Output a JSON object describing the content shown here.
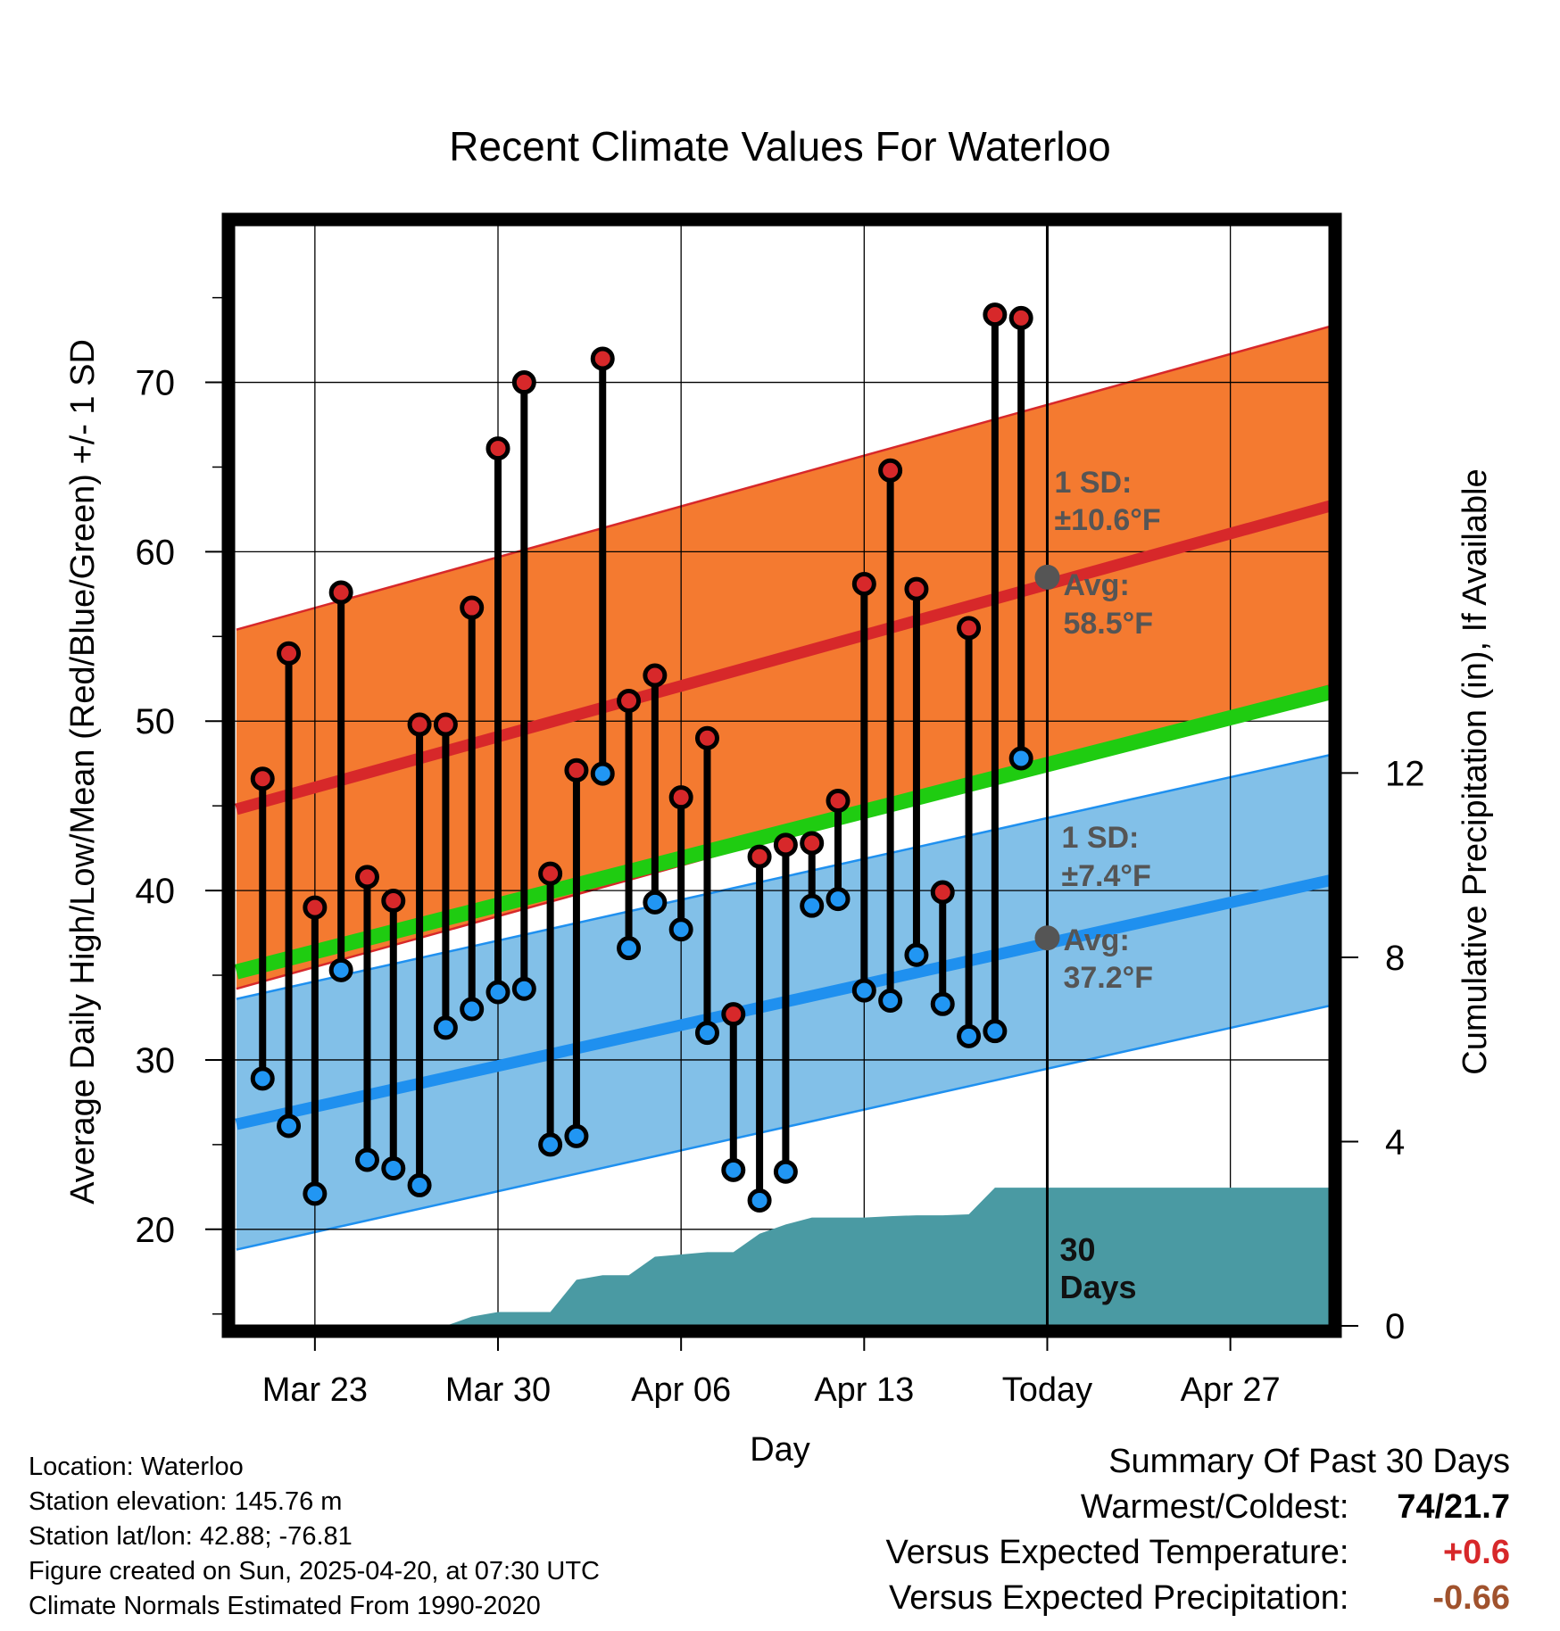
{
  "chart_data": {
    "type": "line",
    "title": "Recent Climate Values For Waterloo",
    "xlabel": "Day",
    "ylabel": "Average Daily High/Low/Mean (Red/Blue/Green) +/- 1 SD",
    "y2label": "Cumulative Precipitation (in), If Available",
    "x_ticks": [
      {
        "label": "Mar 23",
        "day": 3
      },
      {
        "label": "Mar 30",
        "day": 10
      },
      {
        "label": "Apr 06",
        "day": 17
      },
      {
        "label": "Apr 13",
        "day": 24
      },
      {
        "label": "Today",
        "day": 31
      },
      {
        "label": "Apr 27",
        "day": 38
      }
    ],
    "y_ticks": [
      20,
      30,
      40,
      50,
      60,
      70
    ],
    "y2_ticks": [
      0,
      4,
      8,
      12
    ],
    "xlim": [
      -0.1,
      41.8
    ],
    "ylim": [
      14.3,
      79.3
    ],
    "y2lim": [
      0,
      23.9
    ],
    "today_day": 31,
    "grid": true,
    "normals": {
      "days": [
        0,
        41.8
      ],
      "high_mean": [
        44.8,
        62.7
      ],
      "high_sd": 10.6,
      "low_mean": [
        26.2,
        40.6
      ],
      "low_sd": 7.4,
      "avg_mean": [
        35.2,
        51.7
      ]
    },
    "daily": {
      "days": [
        1,
        2,
        3,
        4,
        5,
        6,
        7,
        8,
        9,
        10,
        11,
        12,
        13,
        14,
        15,
        16,
        17,
        18,
        19,
        20,
        21,
        22,
        23,
        24,
        25,
        26,
        27,
        28,
        29,
        30
      ],
      "high": [
        46.6,
        54,
        39,
        57.6,
        40.8,
        39.4,
        49.8,
        49.8,
        56.7,
        66.1,
        70,
        41,
        47.1,
        71.4,
        51.2,
        52.7,
        45.5,
        49,
        32.7,
        42,
        42.7,
        42.8,
        45.3,
        58.1,
        64.8,
        57.8,
        39.9,
        55.5,
        74,
        73.8
      ],
      "low": [
        28.9,
        26.1,
        22.1,
        35.3,
        24.1,
        23.6,
        22.6,
        31.9,
        33,
        34,
        34.2,
        25,
        25.5,
        46.9,
        36.6,
        39.3,
        37.7,
        31.6,
        23.5,
        21.7,
        23.4,
        39.1,
        39.5,
        34.1,
        33.5,
        36.2,
        33.3,
        31.4,
        31.7,
        47.8
      ]
    },
    "precip_cumulative": {
      "days": [
        8,
        9,
        10,
        11,
        12,
        13,
        14,
        15,
        16,
        17,
        18,
        19,
        20,
        21,
        22,
        23,
        24,
        25,
        26,
        27,
        28,
        29,
        30,
        41.8
      ],
      "values": [
        0,
        0.2,
        0.3,
        0.3,
        0.3,
        1.0,
        1.1,
        1.1,
        1.5,
        1.55,
        1.6,
        1.6,
        2.0,
        2.2,
        2.35,
        2.35,
        2.35,
        2.38,
        2.4,
        2.4,
        2.42,
        3.0,
        3.0,
        3.0
      ]
    },
    "annotations": {
      "high_sd_label": "1 SD:",
      "high_sd_value": "±10.6°F",
      "high_avg_label": "Avg:",
      "high_avg_value": "58.5°F",
      "high_avg_point": 58.5,
      "low_sd_label": "1 SD:",
      "low_sd_value": "±7.4°F",
      "low_avg_label": "Avg:",
      "low_avg_value": "37.2°F",
      "low_avg_point": 37.2,
      "days_label_1": "30",
      "days_label_2": "Days"
    },
    "colors": {
      "high_band": "#f47a30",
      "high_line": "#d7282a",
      "low_band": "#82c0e8",
      "low_line": "#1f90ef",
      "avg_line": "#1fcc11",
      "precip": "#4a9aa3",
      "high_dot": "#d7282a",
      "low_dot": "#2196f3",
      "annotation": "#555555"
    }
  },
  "footer": {
    "location": "Location: Waterloo",
    "elevation": "Station elevation: 145.76 m",
    "latlon": "Station lat/lon: 42.88; -76.81",
    "created": "Figure created on Sun, 2025-04-20, at 07:30 UTC",
    "normals": "Climate Normals Estimated From 1990-2020"
  },
  "summary": {
    "title": "Summary Of Past 30 Days",
    "warm_label": "Warmest/Coldest:",
    "warm_value": "74/21.7",
    "temp_label": "Versus Expected Temperature:",
    "temp_value": "+0.6",
    "temp_color": "#d7282a",
    "precip_label": "Versus Expected Precipitation:",
    "precip_value": "-0.66",
    "precip_color": "#a0522d"
  }
}
